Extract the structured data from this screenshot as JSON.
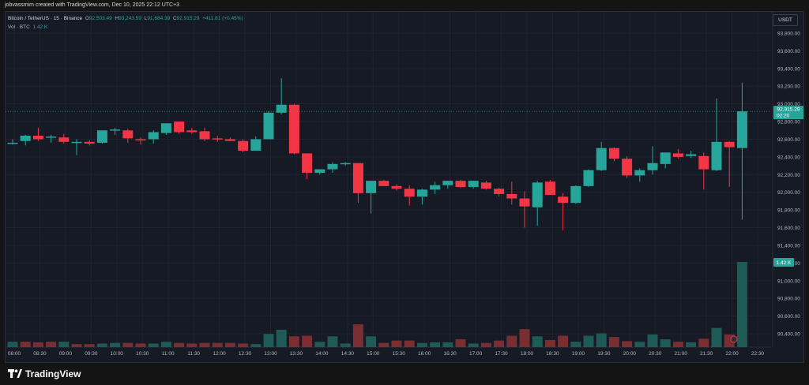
{
  "topbar": {
    "text": "jobvassmim created with TradingView.com, Dec 10, 2025 22:12 UTC+3"
  },
  "legend": {
    "symbol": "Bitcoin / TetherUS · 15 · Binance",
    "o_label": "O",
    "o": "92,503.49",
    "h_label": "H",
    "h": "93,243.59",
    "l_label": "L",
    "l": "91,684.39",
    "c_label": "C",
    "c": "92,915.29",
    "change": "+411.81 (+0.45%)",
    "vol_label": "Vol · BTC",
    "vol": "1.42 K"
  },
  "currency_button": "USDT",
  "price_label": {
    "price": "92,915.29",
    "countdown": "02:20"
  },
  "volume_label": "1.42 K",
  "footer": {
    "brand": "TradingView"
  },
  "colors": {
    "up": "#26a69a",
    "down": "#f23645",
    "up_vol": "#1e5a56",
    "down_vol": "#7a2e32",
    "bg": "#161a25",
    "grid": "#1f2430"
  },
  "chart_data": {
    "type": "candlestick",
    "price_axis": {
      "min": 90200,
      "max": 94000,
      "ticks": [
        "93,800.00",
        "93,600.00",
        "93,400.00",
        "93,200.00",
        "93,000.00",
        "92,800.00",
        "92,600.00",
        "92,400.00",
        "92,200.00",
        "92,000.00",
        "91,800.00",
        "91,600.00",
        "91,400.00",
        "91,200.00",
        "91,000.00",
        "90,800.00",
        "90,600.00",
        "90,400.00"
      ],
      "tick_values": [
        93800,
        93600,
        93400,
        93200,
        93000,
        92800,
        92600,
        92400,
        92200,
        92000,
        91800,
        91600,
        91400,
        91200,
        91000,
        90800,
        90600,
        90400
      ]
    },
    "time_axis": [
      "08:00",
      "08:30",
      "09:00",
      "09:30",
      "10:00",
      "10:30",
      "11:00",
      "11:30",
      "12:00",
      "12:30",
      "13:00",
      "13:30",
      "14:00",
      "14:30",
      "15:00",
      "15:30",
      "16:00",
      "16:30",
      "17:00",
      "17:30",
      "18:00",
      "18:30",
      "19:00",
      "19:30",
      "20:00",
      "20:30",
      "21:00",
      "21:30",
      "22:00",
      "22:30"
    ],
    "candles": [
      {
        "o": 92560,
        "h": 92600,
        "l": 92540,
        "c": 92560
      },
      {
        "o": 92580,
        "h": 92650,
        "l": 92530,
        "c": 92640
      },
      {
        "o": 92640,
        "h": 92730,
        "l": 92580,
        "c": 92600
      },
      {
        "o": 92620,
        "h": 92650,
        "l": 92560,
        "c": 92630
      },
      {
        "o": 92620,
        "h": 92660,
        "l": 92550,
        "c": 92570
      },
      {
        "o": 92560,
        "h": 92600,
        "l": 92420,
        "c": 92570
      },
      {
        "o": 92570,
        "h": 92590,
        "l": 92530,
        "c": 92550
      },
      {
        "o": 92560,
        "h": 92700,
        "l": 92550,
        "c": 92700
      },
      {
        "o": 92700,
        "h": 92730,
        "l": 92650,
        "c": 92710
      },
      {
        "o": 92700,
        "h": 92720,
        "l": 92560,
        "c": 92610
      },
      {
        "o": 92600,
        "h": 92620,
        "l": 92540,
        "c": 92590
      },
      {
        "o": 92600,
        "h": 92700,
        "l": 92550,
        "c": 92680
      },
      {
        "o": 92670,
        "h": 92780,
        "l": 92650,
        "c": 92780
      },
      {
        "o": 92800,
        "h": 92800,
        "l": 92660,
        "c": 92680
      },
      {
        "o": 92700,
        "h": 92730,
        "l": 92660,
        "c": 92680
      },
      {
        "o": 92690,
        "h": 92730,
        "l": 92580,
        "c": 92600
      },
      {
        "o": 92610,
        "h": 92640,
        "l": 92570,
        "c": 92600
      },
      {
        "o": 92600,
        "h": 92620,
        "l": 92580,
        "c": 92580
      },
      {
        "o": 92580,
        "h": 92600,
        "l": 92450,
        "c": 92470
      },
      {
        "o": 92470,
        "h": 92630,
        "l": 92470,
        "c": 92600
      },
      {
        "o": 92600,
        "h": 92920,
        "l": 92600,
        "c": 92900
      },
      {
        "o": 92900,
        "h": 93290,
        "l": 92880,
        "c": 92990
      },
      {
        "o": 92990,
        "h": 93000,
        "l": 92430,
        "c": 92440
      },
      {
        "o": 92440,
        "h": 92440,
        "l": 92150,
        "c": 92220
      },
      {
        "o": 92220,
        "h": 92260,
        "l": 92200,
        "c": 92260
      },
      {
        "o": 92260,
        "h": 92340,
        "l": 92220,
        "c": 92320
      },
      {
        "o": 92320,
        "h": 92340,
        "l": 92300,
        "c": 92330
      },
      {
        "o": 92330,
        "h": 92330,
        "l": 91880,
        "c": 91990
      },
      {
        "o": 91990,
        "h": 92130,
        "l": 91760,
        "c": 92130
      },
      {
        "o": 92130,
        "h": 92140,
        "l": 92080,
        "c": 92070
      },
      {
        "o": 92070,
        "h": 92090,
        "l": 92020,
        "c": 92040
      },
      {
        "o": 92040,
        "h": 92080,
        "l": 91850,
        "c": 91950
      },
      {
        "o": 91950,
        "h": 92040,
        "l": 91860,
        "c": 92030
      },
      {
        "o": 92030,
        "h": 92120,
        "l": 91980,
        "c": 92080
      },
      {
        "o": 92080,
        "h": 92130,
        "l": 92040,
        "c": 92130
      },
      {
        "o": 92130,
        "h": 92140,
        "l": 92050,
        "c": 92060
      },
      {
        "o": 92060,
        "h": 92130,
        "l": 92040,
        "c": 92130
      },
      {
        "o": 92110,
        "h": 92130,
        "l": 92030,
        "c": 92040
      },
      {
        "o": 92040,
        "h": 92050,
        "l": 91950,
        "c": 91980
      },
      {
        "o": 91980,
        "h": 92120,
        "l": 91860,
        "c": 91930
      },
      {
        "o": 91930,
        "h": 92010,
        "l": 91600,
        "c": 91840
      },
      {
        "o": 91830,
        "h": 92130,
        "l": 91620,
        "c": 92110
      },
      {
        "o": 92120,
        "h": 92140,
        "l": 91970,
        "c": 91970
      },
      {
        "o": 91950,
        "h": 91990,
        "l": 91570,
        "c": 91880
      },
      {
        "o": 91880,
        "h": 92080,
        "l": 91870,
        "c": 92070
      },
      {
        "o": 92070,
        "h": 92260,
        "l": 92060,
        "c": 92250
      },
      {
        "o": 92250,
        "h": 92570,
        "l": 92240,
        "c": 92500
      },
      {
        "o": 92500,
        "h": 92510,
        "l": 92350,
        "c": 92380
      },
      {
        "o": 92380,
        "h": 92410,
        "l": 92160,
        "c": 92190
      },
      {
        "o": 92190,
        "h": 92270,
        "l": 92120,
        "c": 92250
      },
      {
        "o": 92250,
        "h": 92520,
        "l": 92200,
        "c": 92330
      },
      {
        "o": 92320,
        "h": 92450,
        "l": 92270,
        "c": 92450
      },
      {
        "o": 92440,
        "h": 92490,
        "l": 92380,
        "c": 92400
      },
      {
        "o": 92410,
        "h": 92470,
        "l": 92390,
        "c": 92430
      },
      {
        "o": 92410,
        "h": 92450,
        "l": 92030,
        "c": 92260
      },
      {
        "o": 92250,
        "h": 93060,
        "l": 92240,
        "c": 92570
      },
      {
        "o": 92570,
        "h": 92580,
        "l": 92060,
        "c": 92510
      },
      {
        "o": 92500,
        "h": 93240,
        "l": 91690,
        "c": 92915
      }
    ],
    "volume": [
      {
        "v": 0.09,
        "up": true
      },
      {
        "v": 0.09,
        "up": false
      },
      {
        "v": 0.08,
        "up": false
      },
      {
        "v": 0.09,
        "up": false
      },
      {
        "v": 0.09,
        "up": true
      },
      {
        "v": 0.05,
        "up": false
      },
      {
        "v": 0.05,
        "up": false
      },
      {
        "v": 0.06,
        "up": true
      },
      {
        "v": 0.07,
        "up": true
      },
      {
        "v": 0.07,
        "up": false
      },
      {
        "v": 0.06,
        "up": false
      },
      {
        "v": 0.06,
        "up": true
      },
      {
        "v": 0.09,
        "up": true
      },
      {
        "v": 0.07,
        "up": false
      },
      {
        "v": 0.06,
        "up": false
      },
      {
        "v": 0.07,
        "up": false
      },
      {
        "v": 0.07,
        "up": false
      },
      {
        "v": 0.07,
        "up": false
      },
      {
        "v": 0.06,
        "up": false
      },
      {
        "v": 0.05,
        "up": true
      },
      {
        "v": 0.22,
        "up": true
      },
      {
        "v": 0.29,
        "up": true
      },
      {
        "v": 0.18,
        "up": false
      },
      {
        "v": 0.19,
        "up": false
      },
      {
        "v": 0.09,
        "up": true
      },
      {
        "v": 0.18,
        "up": true
      },
      {
        "v": 0.06,
        "up": true
      },
      {
        "v": 0.38,
        "up": false
      },
      {
        "v": 0.18,
        "up": true
      },
      {
        "v": 0.07,
        "up": false
      },
      {
        "v": 0.11,
        "up": false
      },
      {
        "v": 0.11,
        "up": false
      },
      {
        "v": 0.07,
        "up": true
      },
      {
        "v": 0.08,
        "up": true
      },
      {
        "v": 0.08,
        "up": true
      },
      {
        "v": 0.13,
        "up": false
      },
      {
        "v": 0.06,
        "up": true
      },
      {
        "v": 0.07,
        "up": false
      },
      {
        "v": 0.11,
        "up": false
      },
      {
        "v": 0.19,
        "up": false
      },
      {
        "v": 0.3,
        "up": false
      },
      {
        "v": 0.18,
        "up": true
      },
      {
        "v": 0.12,
        "up": false
      },
      {
        "v": 0.19,
        "up": false
      },
      {
        "v": 0.09,
        "up": true
      },
      {
        "v": 0.19,
        "up": true
      },
      {
        "v": 0.23,
        "up": true
      },
      {
        "v": 0.17,
        "up": false
      },
      {
        "v": 0.1,
        "up": false
      },
      {
        "v": 0.09,
        "up": true
      },
      {
        "v": 0.21,
        "up": true
      },
      {
        "v": 0.13,
        "up": true
      },
      {
        "v": 0.09,
        "up": false
      },
      {
        "v": 0.08,
        "up": true
      },
      {
        "v": 0.14,
        "up": false
      },
      {
        "v": 0.32,
        "up": true
      },
      {
        "v": 0.21,
        "up": false
      },
      {
        "v": 1.42,
        "up": true
      }
    ]
  }
}
